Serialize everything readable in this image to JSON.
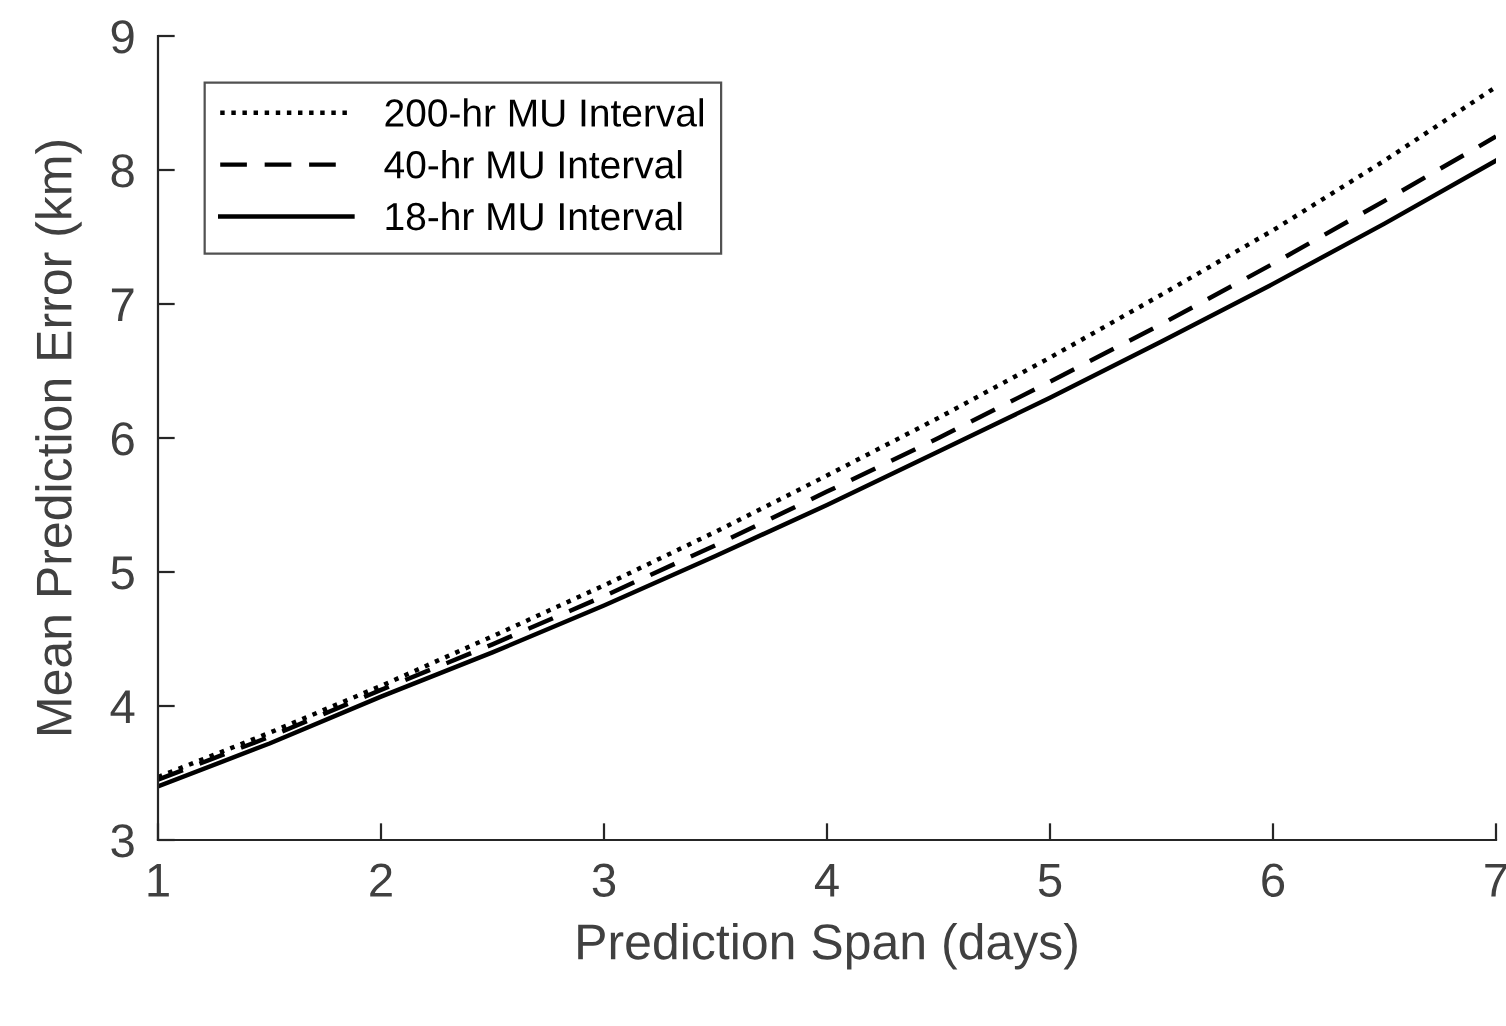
{
  "chart_data": {
    "type": "line",
    "xlabel": "Prediction Span (days)",
    "ylabel": "Mean Prediction Error (km)",
    "x": [
      1,
      1.5,
      2,
      2.5,
      3,
      3.5,
      4,
      4.5,
      5,
      5.5,
      6,
      6.5,
      7
    ],
    "series": [
      {
        "name": "200-hr MU Interval",
        "color": "#000000",
        "line_style": "dotted",
        "values": [
          3.47,
          3.8,
          4.15,
          4.52,
          4.9,
          5.3,
          5.72,
          6.15,
          6.6,
          7.07,
          7.55,
          8.07,
          8.62
        ]
      },
      {
        "name": "40-hr MU Interval",
        "color": "#000000",
        "line_style": "dashed",
        "values": [
          3.45,
          3.77,
          4.12,
          4.46,
          4.82,
          5.2,
          5.6,
          6.0,
          6.42,
          6.85,
          7.3,
          7.77,
          8.25
        ]
      },
      {
        "name": "18-hr MU Interval",
        "color": "#000000",
        "line_style": "solid",
        "values": [
          3.4,
          3.72,
          4.07,
          4.4,
          4.75,
          5.12,
          5.5,
          5.9,
          6.3,
          6.72,
          7.15,
          7.6,
          8.07
        ]
      }
    ],
    "xlim": [
      1,
      7
    ],
    "xticks": [
      1,
      2,
      3,
      4,
      5,
      6,
      7
    ],
    "ylim": [
      3,
      9
    ],
    "yticks": [
      3,
      4,
      5,
      6,
      7,
      8,
      9
    ],
    "grid": false,
    "legend": "top left",
    "marker": "none"
  }
}
